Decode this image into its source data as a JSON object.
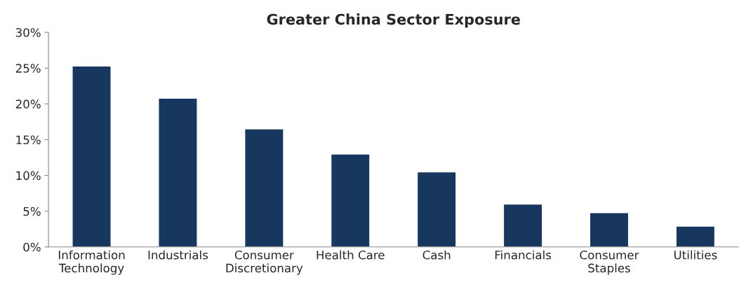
{
  "chart_data": {
    "type": "bar",
    "title": "Greater China Sector Exposure",
    "categories": [
      "Information\nTechnology",
      "Industrials",
      "Consumer\nDiscretionary",
      "Health Care",
      "Cash",
      "Financials",
      "Consumer\nStaples",
      "Utilities"
    ],
    "values": [
      25.3,
      20.8,
      16.5,
      13.0,
      10.5,
      6.0,
      4.8,
      2.9
    ],
    "color": "#17375e",
    "ylim": [
      0,
      30
    ],
    "yticks": [
      {
        "value": 0,
        "label": "0%"
      },
      {
        "value": 5,
        "label": "5%"
      },
      {
        "value": 10,
        "label": "10%"
      },
      {
        "value": 15,
        "label": "15%"
      },
      {
        "value": 20,
        "label": "20%"
      },
      {
        "value": 25,
        "label": "25%"
      },
      {
        "value": 30,
        "label": "30%"
      }
    ],
    "grid": false
  }
}
